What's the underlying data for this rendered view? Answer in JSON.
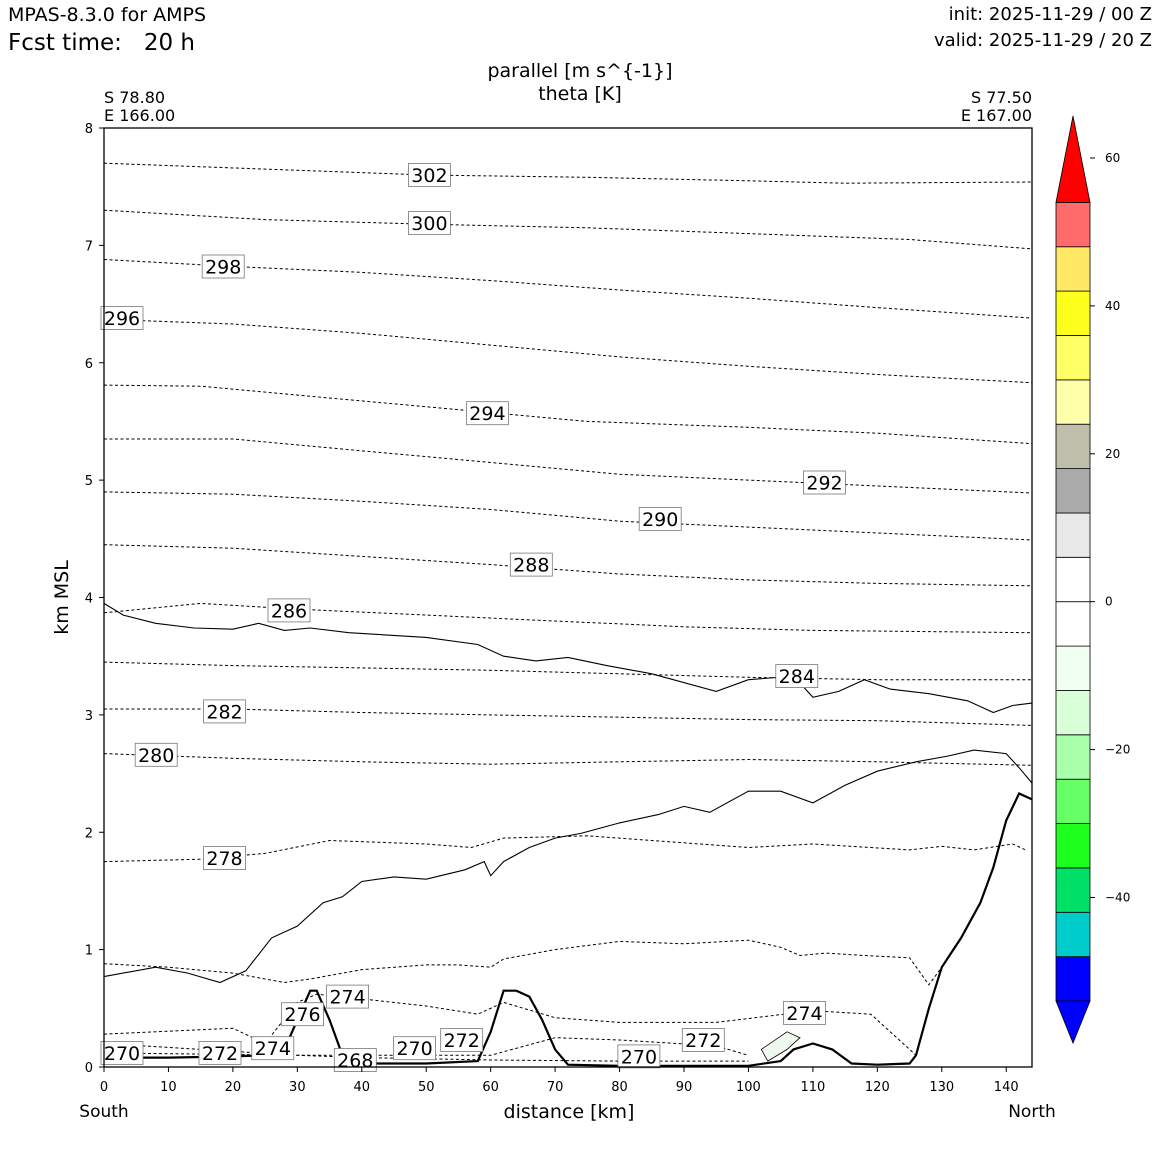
{
  "header": {
    "app_title": "MPAS-8.3.0 for AMPS",
    "fcst_label": "Fcst time:",
    "fcst_value": "20 h",
    "init": "init: 2025-11-29 / 00 Z",
    "valid": "valid: 2025-11-29 / 20 Z"
  },
  "titles": {
    "line1": "parallel [m s^{-1}]",
    "line2": "theta [K]"
  },
  "endpoints": {
    "left": {
      "lat": "S 78.80",
      "lon": "E 166.00"
    },
    "right": {
      "lat": "S 77.50",
      "lon": "E 167.00"
    }
  },
  "chart_data": {
    "type": "cross-section contour",
    "xlabel": "distance [km]",
    "ylabel": "km MSL",
    "xlim": [
      0,
      144
    ],
    "ylim": [
      0,
      8
    ],
    "x_ticks": [
      0,
      10,
      20,
      30,
      40,
      50,
      60,
      70,
      80,
      90,
      100,
      110,
      120,
      130,
      140
    ],
    "y_ticks": [
      0,
      1,
      2,
      3,
      4,
      5,
      6,
      7,
      8
    ],
    "x_end_labels": {
      "left": "South",
      "right": "North"
    },
    "theta_isentropes": [
      {
        "theta": "302",
        "points": [
          [
            0,
            7.7
          ],
          [
            25,
            7.65
          ],
          [
            50,
            7.6
          ],
          [
            75,
            7.58
          ],
          [
            100,
            7.55
          ],
          [
            115,
            7.53
          ],
          [
            144,
            7.54
          ]
        ]
      },
      {
        "theta": "300",
        "points": [
          [
            0,
            7.3
          ],
          [
            25,
            7.22
          ],
          [
            50,
            7.18
          ],
          [
            75,
            7.15
          ],
          [
            100,
            7.1
          ],
          [
            125,
            7.05
          ],
          [
            144,
            6.97
          ]
        ]
      },
      {
        "theta": "298",
        "points": [
          [
            0,
            6.88
          ],
          [
            20,
            6.82
          ],
          [
            40,
            6.77
          ],
          [
            60,
            6.7
          ],
          [
            80,
            6.62
          ],
          [
            100,
            6.55
          ],
          [
            120,
            6.47
          ],
          [
            144,
            6.38
          ]
        ]
      },
      {
        "theta": "296",
        "points": [
          [
            0,
            6.37
          ],
          [
            20,
            6.33
          ],
          [
            40,
            6.25
          ],
          [
            60,
            6.15
          ],
          [
            80,
            6.05
          ],
          [
            100,
            5.97
          ],
          [
            120,
            5.9
          ],
          [
            144,
            5.83
          ]
        ]
      },
      {
        "theta": "294",
        "points": [
          [
            0,
            5.81
          ],
          [
            15,
            5.8
          ],
          [
            35,
            5.7
          ],
          [
            55,
            5.6
          ],
          [
            75,
            5.5
          ],
          [
            100,
            5.45
          ],
          [
            120,
            5.4
          ],
          [
            144,
            5.31
          ]
        ]
      },
      {
        "theta": "292",
        "points": [
          [
            0,
            5.35
          ],
          [
            20,
            5.35
          ],
          [
            40,
            5.25
          ],
          [
            60,
            5.15
          ],
          [
            80,
            5.05
          ],
          [
            100,
            5.0
          ],
          [
            120,
            4.95
          ],
          [
            144,
            4.89
          ]
        ]
      },
      {
        "theta": "290",
        "points": [
          [
            0,
            4.9
          ],
          [
            20,
            4.88
          ],
          [
            40,
            4.82
          ],
          [
            60,
            4.75
          ],
          [
            80,
            4.65
          ],
          [
            100,
            4.6
          ],
          [
            120,
            4.55
          ],
          [
            144,
            4.49
          ]
        ]
      },
      {
        "theta": "288",
        "points": [
          [
            0,
            4.45
          ],
          [
            20,
            4.42
          ],
          [
            40,
            4.35
          ],
          [
            60,
            4.28
          ],
          [
            80,
            4.2
          ],
          [
            100,
            4.15
          ],
          [
            120,
            4.12
          ],
          [
            144,
            4.1
          ]
        ]
      },
      {
        "theta": "286",
        "points": [
          [
            0,
            3.87
          ],
          [
            15,
            3.95
          ],
          [
            30,
            3.9
          ],
          [
            50,
            3.85
          ],
          [
            70,
            3.8
          ],
          [
            90,
            3.75
          ],
          [
            110,
            3.72
          ],
          [
            144,
            3.7
          ]
        ]
      },
      {
        "theta": "284",
        "points": [
          [
            0,
            3.45
          ],
          [
            20,
            3.42
          ],
          [
            40,
            3.4
          ],
          [
            60,
            3.38
          ],
          [
            80,
            3.35
          ],
          [
            100,
            3.32
          ],
          [
            120,
            3.3
          ],
          [
            144,
            3.3
          ]
        ]
      },
      {
        "theta": "282",
        "points": [
          [
            0,
            3.05
          ],
          [
            20,
            3.05
          ],
          [
            40,
            3.02
          ],
          [
            60,
            3.0
          ],
          [
            80,
            2.98
          ],
          [
            100,
            2.96
          ],
          [
            120,
            2.95
          ],
          [
            144,
            2.91
          ]
        ]
      },
      {
        "theta": "280",
        "points": [
          [
            0,
            2.67
          ],
          [
            20,
            2.63
          ],
          [
            40,
            2.6
          ],
          [
            60,
            2.58
          ],
          [
            80,
            2.6
          ],
          [
            100,
            2.62
          ],
          [
            120,
            2.6
          ],
          [
            144,
            2.57
          ]
        ]
      },
      {
        "theta": "278",
        "points": [
          [
            0,
            1.75
          ],
          [
            15,
            1.77
          ],
          [
            25,
            1.82
          ],
          [
            35,
            1.93
          ],
          [
            50,
            1.9
          ],
          [
            57,
            1.87
          ],
          [
            62,
            1.95
          ],
          [
            75,
            1.97
          ],
          [
            85,
            1.93
          ],
          [
            100,
            1.87
          ],
          [
            110,
            1.9
          ],
          [
            125,
            1.85
          ],
          [
            130,
            1.88
          ],
          [
            135,
            1.85
          ],
          [
            141,
            1.9
          ],
          [
            143,
            1.85
          ]
        ]
      },
      {
        "theta": "276",
        "points": [
          [
            0,
            0.88
          ],
          [
            10,
            0.85
          ],
          [
            20,
            0.8
          ],
          [
            28,
            0.72
          ],
          [
            32,
            0.75
          ],
          [
            40,
            0.83
          ],
          [
            50,
            0.87
          ],
          [
            55,
            0.87
          ],
          [
            60,
            0.85
          ],
          [
            62,
            0.92
          ],
          [
            70,
            1.0
          ],
          [
            80,
            1.07
          ],
          [
            90,
            1.05
          ],
          [
            100,
            1.08
          ],
          [
            105,
            1.02
          ],
          [
            108,
            0.95
          ],
          [
            112,
            0.97
          ],
          [
            118,
            0.95
          ],
          [
            125,
            0.93
          ],
          [
            128,
            0.7
          ],
          [
            130,
            0.85
          ]
        ]
      },
      {
        "theta": "274",
        "points": [
          [
            0,
            0.28
          ],
          [
            20,
            0.33
          ],
          [
            25,
            0.2
          ],
          [
            30,
            0.55
          ],
          [
            33,
            0.62
          ],
          [
            40,
            0.58
          ],
          [
            50,
            0.52
          ],
          [
            58,
            0.45
          ],
          [
            62,
            0.55
          ],
          [
            70,
            0.42
          ],
          [
            80,
            0.38
          ],
          [
            95,
            0.38
          ],
          [
            110,
            0.48
          ],
          [
            119,
            0.45
          ],
          [
            124,
            0.2
          ],
          [
            126,
            0.1
          ]
        ]
      },
      {
        "theta": "272",
        "points": [
          [
            0,
            0.2
          ],
          [
            15,
            0.15
          ],
          [
            30,
            0.1
          ],
          [
            35,
            0.1
          ],
          [
            60,
            0.1
          ],
          [
            70,
            0.25
          ],
          [
            80,
            0.23
          ],
          [
            95,
            0.18
          ],
          [
            100,
            0.1
          ]
        ]
      },
      {
        "theta": "270",
        "points": [
          [
            0,
            0.12
          ],
          [
            30,
            0.1
          ],
          [
            40,
            0.08
          ],
          [
            60,
            0.06
          ],
          [
            80,
            0.05
          ],
          [
            100,
            0.05
          ]
        ]
      }
    ],
    "contour_labels": [
      {
        "text": "302",
        "x": 50.5,
        "y": 7.6
      },
      {
        "text": "300",
        "x": 50.5,
        "y": 7.19
      },
      {
        "text": "298",
        "x": 18.5,
        "y": 6.82
      },
      {
        "text": "296",
        "x": 2.8,
        "y": 6.38
      },
      {
        "text": "294",
        "x": 59.5,
        "y": 5.57
      },
      {
        "text": "292",
        "x": 111.8,
        "y": 4.98
      },
      {
        "text": "290",
        "x": 86.3,
        "y": 4.67
      },
      {
        "text": "288",
        "x": 66.3,
        "y": 4.28
      },
      {
        "text": "286",
        "x": 28.7,
        "y": 3.89
      },
      {
        "text": "284",
        "x": 107.5,
        "y": 3.33
      },
      {
        "text": "282",
        "x": 18.7,
        "y": 3.03
      },
      {
        "text": "280",
        "x": 8.1,
        "y": 2.66
      },
      {
        "text": "278",
        "x": 18.7,
        "y": 1.78
      },
      {
        "text": "276",
        "x": 30.8,
        "y": 0.45
      },
      {
        "text": "274",
        "x": 37.8,
        "y": 0.6
      },
      {
        "text": "274",
        "x": 108.7,
        "y": 0.46
      },
      {
        "text": "274",
        "x": 26.2,
        "y": 0.16
      },
      {
        "text": "272",
        "x": 18.0,
        "y": 0.12
      },
      {
        "text": "272",
        "x": 55.5,
        "y": 0.23
      },
      {
        "text": "272",
        "x": 93.0,
        "y": 0.23
      },
      {
        "text": "270",
        "x": 2.8,
        "y": 0.12
      },
      {
        "text": "270",
        "x": 48.2,
        "y": 0.16
      },
      {
        "text": "270",
        "x": 83.0,
        "y": 0.09
      },
      {
        "text": "268",
        "x": 39.0,
        "y": 0.06
      }
    ],
    "wind_zero_contours": [
      [
        [
          0,
          3.95
        ],
        [
          3,
          3.85
        ],
        [
          8,
          3.78
        ],
        [
          14,
          3.74
        ],
        [
          20,
          3.73
        ],
        [
          24,
          3.78
        ],
        [
          28,
          3.72
        ],
        [
          32,
          3.74
        ],
        [
          38,
          3.7
        ],
        [
          50,
          3.66
        ],
        [
          58,
          3.6
        ],
        [
          62,
          3.5
        ],
        [
          67,
          3.46
        ],
        [
          72,
          3.49
        ],
        [
          78,
          3.42
        ],
        [
          85,
          3.35
        ],
        [
          95,
          3.2
        ],
        [
          100,
          3.3
        ],
        [
          107,
          3.33
        ],
        [
          110,
          3.15
        ],
        [
          114,
          3.2
        ],
        [
          118,
          3.3
        ],
        [
          122,
          3.22
        ],
        [
          128,
          3.18
        ],
        [
          134,
          3.12
        ],
        [
          138,
          3.02
        ],
        [
          141,
          3.08
        ],
        [
          144,
          3.1
        ]
      ],
      [
        [
          0,
          0.77
        ],
        [
          8,
          0.85
        ],
        [
          13,
          0.8
        ],
        [
          18,
          0.72
        ],
        [
          22,
          0.82
        ],
        [
          26,
          1.1
        ],
        [
          30,
          1.2
        ],
        [
          34,
          1.4
        ],
        [
          37,
          1.45
        ],
        [
          40,
          1.58
        ],
        [
          45,
          1.62
        ],
        [
          50,
          1.6
        ],
        [
          56,
          1.68
        ],
        [
          59,
          1.75
        ],
        [
          60,
          1.63
        ],
        [
          62,
          1.75
        ],
        [
          66,
          1.87
        ],
        [
          70,
          1.95
        ],
        [
          74,
          1.99
        ],
        [
          80,
          2.08
        ],
        [
          86,
          2.15
        ],
        [
          90,
          2.22
        ],
        [
          94,
          2.17
        ],
        [
          100,
          2.35
        ],
        [
          105,
          2.35
        ],
        [
          110,
          2.25
        ],
        [
          115,
          2.4
        ],
        [
          120,
          2.52
        ],
        [
          126,
          2.6
        ],
        [
          131,
          2.65
        ],
        [
          135,
          2.7
        ],
        [
          140,
          2.67
        ],
        [
          142,
          2.55
        ],
        [
          144,
          2.42
        ]
      ]
    ],
    "terrain_profile": [
      [
        0,
        0.08
      ],
      [
        10,
        0.08
      ],
      [
        20,
        0.09
      ],
      [
        25,
        0.1
      ],
      [
        28,
        0.15
      ],
      [
        30,
        0.4
      ],
      [
        32,
        0.65
      ],
      [
        33,
        0.65
      ],
      [
        35,
        0.4
      ],
      [
        37,
        0.1
      ],
      [
        40,
        0.03
      ],
      [
        50,
        0.03
      ],
      [
        58,
        0.05
      ],
      [
        60,
        0.3
      ],
      [
        62,
        0.65
      ],
      [
        64,
        0.65
      ],
      [
        66,
        0.6
      ],
      [
        68,
        0.4
      ],
      [
        70,
        0.15
      ],
      [
        72,
        0.02
      ],
      [
        80,
        0.01
      ],
      [
        100,
        0.01
      ],
      [
        105,
        0.05
      ],
      [
        107,
        0.15
      ],
      [
        110,
        0.2
      ],
      [
        113,
        0.15
      ],
      [
        116,
        0.03
      ],
      [
        120,
        0.02
      ],
      [
        125,
        0.03
      ],
      [
        126,
        0.1
      ],
      [
        128,
        0.5
      ],
      [
        130,
        0.85
      ],
      [
        133,
        1.1
      ],
      [
        136,
        1.4
      ],
      [
        138,
        1.7
      ],
      [
        140,
        2.1
      ],
      [
        142,
        2.33
      ],
      [
        144,
        2.28
      ]
    ],
    "wind_shaded_patch": {
      "value_range": "0 to -6",
      "points": [
        [
          103,
          0.05
        ],
        [
          106,
          0.15
        ],
        [
          108,
          0.25
        ],
        [
          106,
          0.3
        ],
        [
          102,
          0.15
        ]
      ]
    },
    "colorbar": {
      "label_ticks": [
        "60",
        "40",
        "20",
        "0",
        "−20",
        "−40"
      ],
      "tick_values": [
        60,
        40,
        20,
        0,
        -20,
        -40
      ],
      "range": [
        -54,
        60
      ],
      "boundaries": [
        -54,
        -48,
        -42,
        -36,
        -30,
        -24,
        -18,
        -12,
        -6,
        0,
        6,
        12,
        18,
        24,
        30,
        36,
        42,
        48,
        54
      ],
      "colors_low_to_high": [
        "#0000ff",
        "#00cccc",
        "#00e066",
        "#1eff1e",
        "#66ff66",
        "#aaffaa",
        "#d9ffd9",
        "#f0fff0",
        "#ffffff",
        "#ffffff",
        "#e8e8e8",
        "#aaaaaa",
        "#bebeaa",
        "#ffffaa",
        "#ffff66",
        "#ffff1e",
        "#ffe866",
        "#ff6a6a",
        "#ff0000"
      ],
      "extend_low_color": "#0000ff",
      "extend_high_color": "#ff0000"
    }
  }
}
